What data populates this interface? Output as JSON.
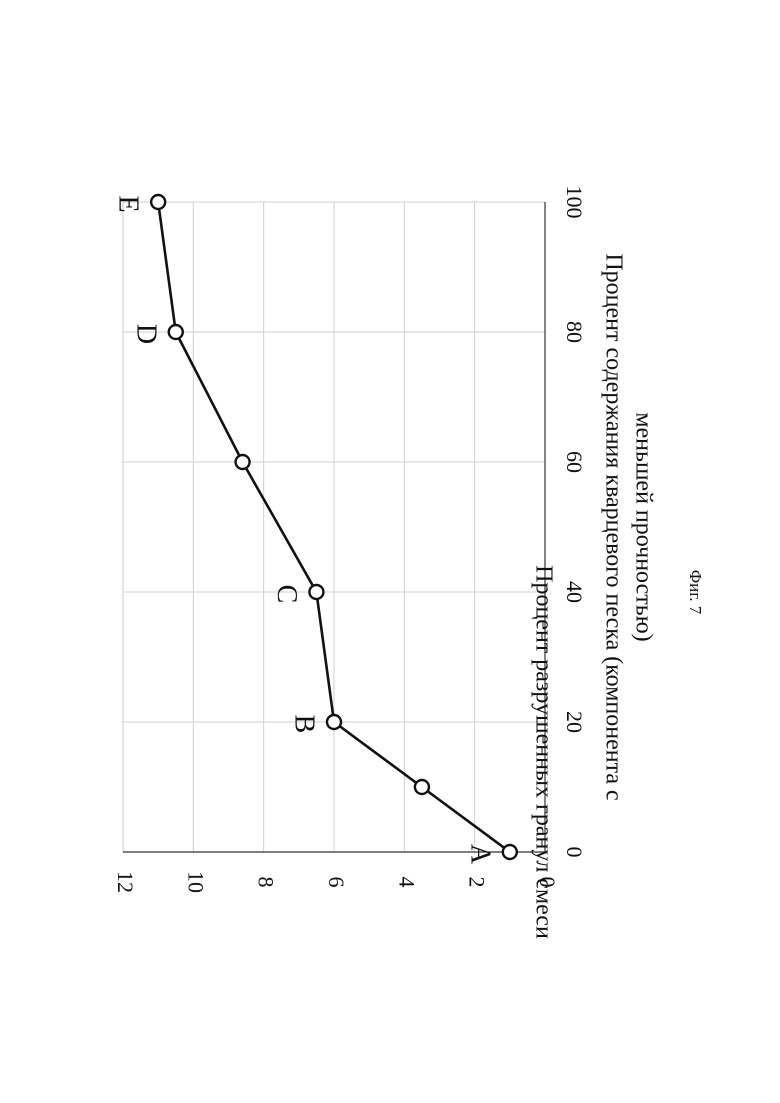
{
  "chart_data": {
    "type": "line",
    "x": [
      0,
      10,
      20,
      40,
      60,
      80,
      100
    ],
    "series": [
      {
        "values": [
          1,
          3.5,
          6,
          6.5,
          8.6,
          10.5,
          11
        ]
      }
    ],
    "point_labels": [
      {
        "text": "A",
        "x": 0,
        "y": 1
      },
      {
        "text": "B",
        "x": 20,
        "y": 6
      },
      {
        "text": "C",
        "x": 40,
        "y": 6.5
      },
      {
        "text": "D",
        "x": 80,
        "y": 10.5
      },
      {
        "text": "E",
        "x": 100,
        "y": 11
      }
    ],
    "xlim": [
      0,
      100
    ],
    "ylim": [
      0,
      12
    ],
    "xticks": [
      0,
      20,
      40,
      60,
      80,
      100
    ],
    "yticks": [
      0,
      2,
      4,
      6,
      8,
      10,
      12
    ],
    "xlabel_line1": "Процент содержания кварцевого песка (компонента с",
    "xlabel_line2": "меньшей прочностью)",
    "ylabel": "Процент разрушенных гранул смеси",
    "grid": true,
    "rotated_90_clockwise": true
  },
  "caption": "Фиг. 7"
}
